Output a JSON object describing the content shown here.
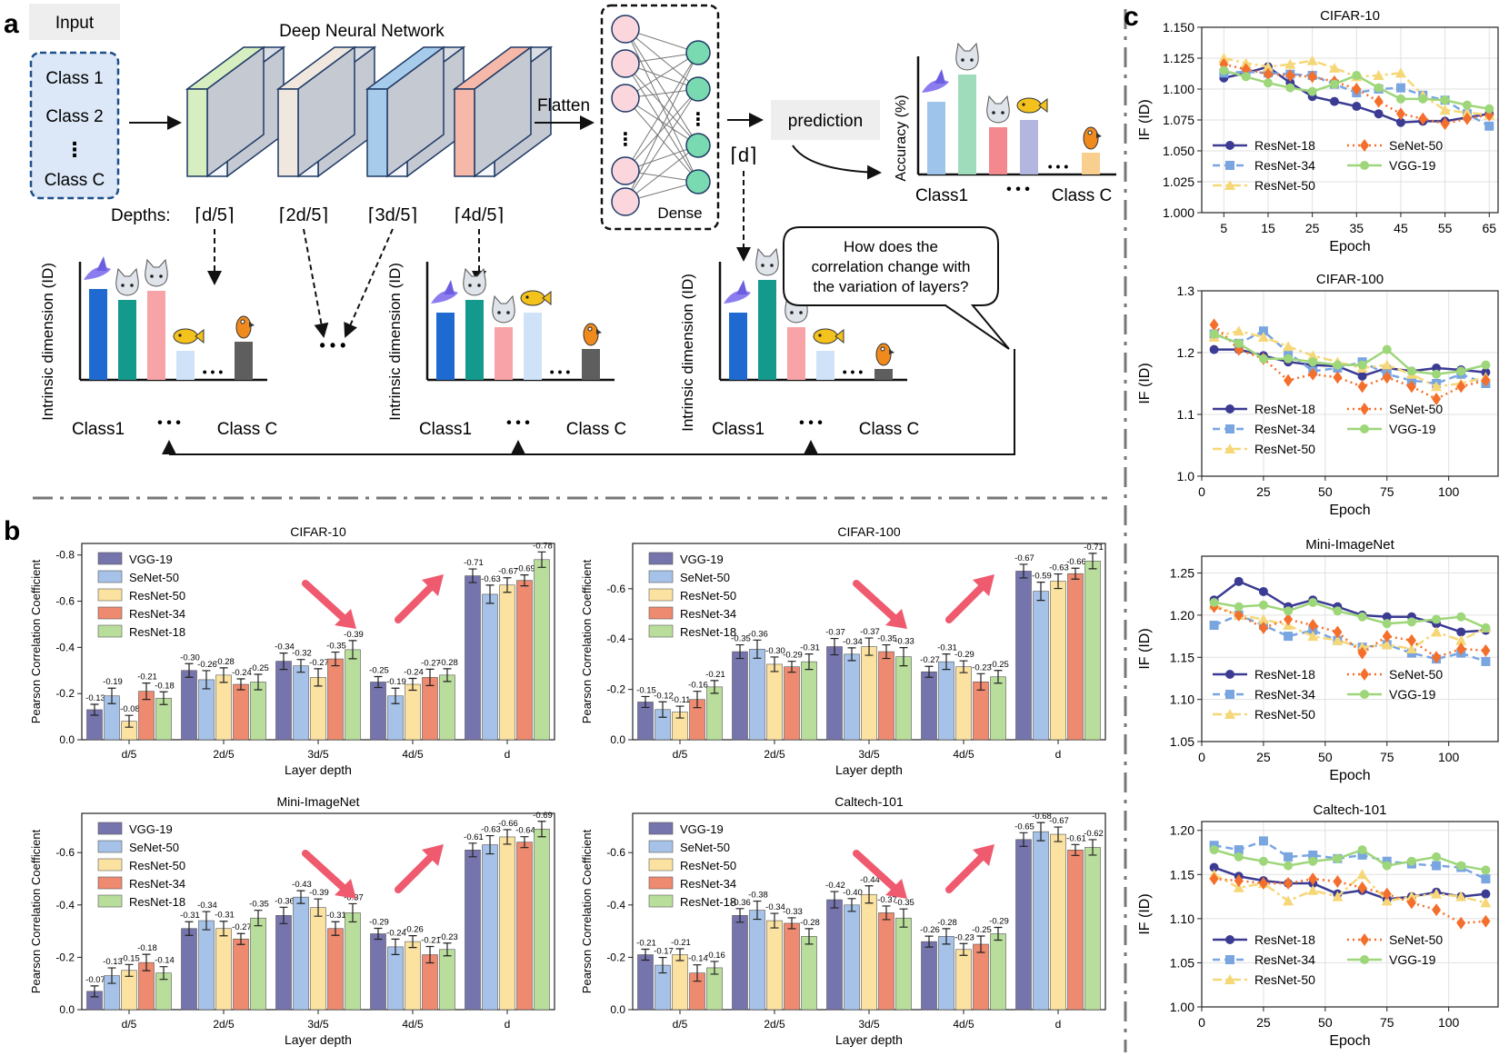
{
  "panel_labels": {
    "a": "a",
    "b": "b",
    "c": "c"
  },
  "colors": {
    "vgg19_bar": "#7674ad",
    "senet50_bar": "#a6c2e8",
    "resnet50_bar": "#fbe2a0",
    "resnet34_bar": "#ee8a6f",
    "resnet18_bar": "#b9de9c",
    "resnet18_line": "#3b3b93",
    "resnet34_line": "#79a5e0",
    "resnet50_line": "#f6d778",
    "senet50_line": "#f46f2c",
    "vgg19_line": "#9ed67a",
    "arrow": "#ef5a6f",
    "input_box": "#dce8f8",
    "input_border": "#1f4f8b"
  },
  "schematic": {
    "input_label": "Input",
    "classes": [
      "Class 1",
      "Class 2",
      "⋮",
      "Class C"
    ],
    "network_title": "Deep Neural Network",
    "depths_label": "Depths:",
    "depth_marks": [
      "⌈d/5⌉",
      "⌈2d/5⌉",
      "⌈3d/5⌉",
      "⌈4d/5⌉"
    ],
    "flatten_label": "Flatten",
    "dense_label": "Dense",
    "final_depth": "⌈d⌉",
    "prediction_label": "prediction",
    "accuracy_label": "Accuracy (%)",
    "id_label": "Intrinsic dimension (ID)",
    "class_first": "Class1",
    "class_last": "Class C",
    "ellipsis": "• • •",
    "question": [
      "How does the",
      "correlation change with",
      "the variation of layers?"
    ]
  },
  "chart_data": [
    {
      "type": "bar",
      "panel": "b",
      "title": "CIFAR-10",
      "categories": [
        "d/5",
        "2d/5",
        "3d/5",
        "4d/5",
        "d"
      ],
      "xlabel": "Layer depth",
      "ylabel": "Pearson Correlation Coefficient",
      "ylim": [
        0,
        -0.85
      ],
      "yticks": [
        "0.0",
        "-0.2",
        "-0.4",
        "-0.6",
        "-0.8"
      ],
      "legend_position": "top-left",
      "series": [
        {
          "name": "VGG-19",
          "values": [
            -0.13,
            -0.3,
            -0.34,
            -0.25,
            -0.71
          ],
          "labels": [
            "-0.13",
            "-0.30",
            "-0.34",
            "-0.25",
            "-0.71"
          ]
        },
        {
          "name": "SeNet-50",
          "values": [
            -0.19,
            -0.26,
            -0.32,
            -0.19,
            -0.63
          ],
          "labels": [
            "-0.19",
            "-0.26",
            "-0.32",
            "-0.19",
            "-0.63"
          ]
        },
        {
          "name": "ResNet-50",
          "values": [
            -0.08,
            -0.28,
            -0.27,
            -0.24,
            -0.67
          ],
          "labels": [
            "-0.08",
            "-0.28",
            "-0.27",
            "-0.24",
            "-0.67"
          ]
        },
        {
          "name": "ResNet-34",
          "values": [
            -0.21,
            -0.24,
            -0.35,
            -0.27,
            -0.69
          ],
          "labels": [
            "-0.21",
            "-0.24",
            "-0.35",
            "-0.27",
            "-0.69"
          ]
        },
        {
          "name": "ResNet-18",
          "values": [
            -0.18,
            -0.25,
            -0.39,
            -0.28,
            -0.78
          ],
          "labels": [
            "-0.18",
            "-0.25",
            "-0.39",
            "-0.28",
            "-0.78"
          ]
        }
      ]
    },
    {
      "type": "bar",
      "panel": "b",
      "title": "CIFAR-100",
      "categories": [
        "d/5",
        "2d/5",
        "3d/5",
        "4d/5",
        "d"
      ],
      "xlabel": "Layer depth",
      "ylabel": "Pearson Correlation Coefficient",
      "ylim": [
        0,
        -0.78
      ],
      "yticks": [
        "0.0",
        "-0.2",
        "-0.4",
        "-0.6"
      ],
      "legend_position": "top-left",
      "series": [
        {
          "name": "VGG-19",
          "values": [
            -0.15,
            -0.35,
            -0.37,
            -0.27,
            -0.67
          ],
          "labels": [
            "-0.15",
            "-0.35",
            "-0.37",
            "-0.27",
            "-0.67"
          ]
        },
        {
          "name": "SeNet-50",
          "values": [
            -0.12,
            -0.36,
            -0.34,
            -0.31,
            -0.59
          ],
          "labels": [
            "-0.12",
            "-0.36",
            "-0.34",
            "-0.31",
            "-0.59"
          ]
        },
        {
          "name": "ResNet-50",
          "values": [
            -0.11,
            -0.3,
            -0.37,
            -0.29,
            -0.63
          ],
          "labels": [
            "-0.11",
            "-0.30",
            "-0.37",
            "-0.29",
            "-0.63"
          ]
        },
        {
          "name": "ResNet-34",
          "values": [
            -0.16,
            -0.29,
            -0.35,
            -0.23,
            -0.66
          ],
          "labels": [
            "-0.16",
            "-0.29",
            "-0.35",
            "-0.23",
            "-0.66"
          ]
        },
        {
          "name": "ResNet-18",
          "values": [
            -0.21,
            -0.31,
            -0.33,
            -0.25,
            -0.71
          ],
          "labels": [
            "-0.21",
            "-0.31",
            "-0.33",
            "-0.25",
            "-0.71"
          ]
        }
      ]
    },
    {
      "type": "bar",
      "panel": "b",
      "title": "Mini-ImageNet",
      "categories": [
        "d/5",
        "2d/5",
        "3d/5",
        "4d/5",
        "d"
      ],
      "xlabel": "Layer depth",
      "ylabel": "Pearson Correlation Coefficient",
      "ylim": [
        0,
        -0.75
      ],
      "yticks": [
        "0.0",
        "-0.2",
        "-0.4",
        "-0.6"
      ],
      "legend_position": "top-left",
      "series": [
        {
          "name": "VGG-19",
          "values": [
            -0.07,
            -0.31,
            -0.36,
            -0.29,
            -0.61
          ],
          "labels": [
            "-0.07",
            "-0.31",
            "-0.36",
            "-0.29",
            "-0.61"
          ]
        },
        {
          "name": "SeNet-50",
          "values": [
            -0.13,
            -0.34,
            -0.43,
            -0.24,
            -0.63
          ],
          "labels": [
            "-0.13",
            "-0.34",
            "-0.43",
            "-0.24",
            "-0.63"
          ]
        },
        {
          "name": "ResNet-50",
          "values": [
            -0.15,
            -0.31,
            -0.39,
            -0.26,
            -0.66
          ],
          "labels": [
            "-0.15",
            "-0.31",
            "-0.39",
            "-0.26",
            "-0.66"
          ]
        },
        {
          "name": "ResNet-34",
          "values": [
            -0.18,
            -0.27,
            -0.31,
            -0.21,
            -0.64
          ],
          "labels": [
            "-0.18",
            "-0.27",
            "-0.31",
            "-0.21",
            "-0.64"
          ]
        },
        {
          "name": "ResNet-18",
          "values": [
            -0.14,
            -0.35,
            -0.37,
            -0.23,
            -0.69
          ],
          "labels": [
            "-0.14",
            "-0.35",
            "-0.37",
            "-0.23",
            "-0.69"
          ]
        }
      ]
    },
    {
      "type": "bar",
      "panel": "b",
      "title": "Caltech-101",
      "categories": [
        "d/5",
        "2d/5",
        "3d/5",
        "4d/5",
        "d"
      ],
      "xlabel": "Layer depth",
      "ylabel": "Pearson Correlation Coefficient",
      "ylim": [
        0,
        -0.75
      ],
      "yticks": [
        "0.0",
        "-0.2",
        "-0.4",
        "-0.6"
      ],
      "legend_position": "top-left",
      "series": [
        {
          "name": "VGG-19",
          "values": [
            -0.21,
            -0.36,
            -0.42,
            -0.26,
            -0.65
          ],
          "labels": [
            "-0.21",
            "-0.36",
            "-0.42",
            "-0.26",
            "-0.65"
          ]
        },
        {
          "name": "SeNet-50",
          "values": [
            -0.17,
            -0.38,
            -0.4,
            -0.28,
            -0.68
          ],
          "labels": [
            "-0.17",
            "-0.38",
            "-0.40",
            "-0.28",
            "-0.68"
          ]
        },
        {
          "name": "ResNet-50",
          "values": [
            -0.21,
            -0.34,
            -0.44,
            -0.23,
            -0.67
          ],
          "labels": [
            "-0.21",
            "-0.34",
            "-0.44",
            "-0.23",
            "-0.67"
          ]
        },
        {
          "name": "ResNet-34",
          "values": [
            -0.14,
            -0.33,
            -0.37,
            -0.25,
            -0.61
          ],
          "labels": [
            "-0.14",
            "-0.33",
            "-0.37",
            "-0.25",
            "-0.61"
          ]
        },
        {
          "name": "ResNet-18",
          "values": [
            -0.16,
            -0.28,
            -0.35,
            -0.29,
            -0.62
          ],
          "labels": [
            "-0.16",
            "-0.28",
            "-0.35",
            "-0.29",
            "-0.62"
          ]
        }
      ]
    },
    {
      "type": "line",
      "panel": "c",
      "title": "CIFAR-10",
      "x": [
        5,
        10,
        15,
        20,
        25,
        30,
        35,
        40,
        45,
        50,
        55,
        60,
        65
      ],
      "xticks": [
        5,
        15,
        25,
        35,
        45,
        55,
        65
      ],
      "xlim": [
        0,
        67
      ],
      "ylim": [
        1.0,
        1.15
      ],
      "yticks": [
        "1.000",
        "1.025",
        "1.050",
        "1.075",
        "1.100",
        "1.125",
        "1.150"
      ],
      "ytick_values": [
        1.0,
        1.025,
        1.05,
        1.075,
        1.1,
        1.125,
        1.15
      ],
      "xlabel": "Epoch",
      "ylabel": "IF (ID)",
      "legend_position": "bottom-left",
      "series": [
        {
          "name": "ResNet-18",
          "values": [
            1.109,
            1.113,
            1.118,
            1.105,
            1.094,
            1.09,
            1.086,
            1.08,
            1.073,
            1.074,
            1.074,
            1.077,
            1.08
          ]
        },
        {
          "name": "ResNet-34",
          "values": [
            1.113,
            1.114,
            1.113,
            1.112,
            1.111,
            1.104,
            1.097,
            1.1,
            1.101,
            1.095,
            1.091,
            1.08,
            1.07
          ]
        },
        {
          "name": "ResNet-50",
          "values": [
            1.125,
            1.121,
            1.118,
            1.12,
            1.123,
            1.117,
            1.11,
            1.111,
            1.113,
            1.095,
            1.083,
            1.081,
            1.079
          ]
        },
        {
          "name": "SeNet-50",
          "values": [
            1.12,
            1.116,
            1.112,
            1.111,
            1.11,
            1.106,
            1.1,
            1.09,
            1.08,
            1.076,
            1.072,
            1.076,
            1.079
          ]
        },
        {
          "name": "VGG-19",
          "values": [
            1.115,
            1.11,
            1.105,
            1.101,
            1.098,
            1.104,
            1.111,
            1.101,
            1.092,
            1.092,
            1.091,
            1.087,
            1.084
          ]
        }
      ]
    },
    {
      "type": "line",
      "panel": "c",
      "title": "CIFAR-100",
      "x": [
        5,
        15,
        25,
        35,
        45,
        55,
        65,
        75,
        85,
        95,
        105,
        115
      ],
      "xticks": [
        0,
        25,
        50,
        75,
        100
      ],
      "xlim": [
        0,
        120
      ],
      "ylim": [
        1.0,
        1.3
      ],
      "yticks": [
        "1.0",
        "1.1",
        "1.2",
        "1.3"
      ],
      "ytick_values": [
        1.0,
        1.1,
        1.2,
        1.3
      ],
      "xlabel": "Epoch",
      "ylabel": "IF (ID)",
      "legend_position": "bottom-left",
      "series": [
        {
          "name": "ResNet-18",
          "values": [
            1.205,
            1.205,
            1.195,
            1.185,
            1.18,
            1.178,
            1.162,
            1.175,
            1.17,
            1.175,
            1.172,
            1.168
          ]
        },
        {
          "name": "ResNet-34",
          "values": [
            1.23,
            1.215,
            1.235,
            1.2,
            1.17,
            1.175,
            1.185,
            1.165,
            1.155,
            1.15,
            1.165,
            1.15
          ]
        },
        {
          "name": "ResNet-50",
          "values": [
            1.225,
            1.235,
            1.225,
            1.21,
            1.195,
            1.185,
            1.175,
            1.18,
            1.165,
            1.145,
            1.15,
            1.16
          ]
        },
        {
          "name": "SeNet-50",
          "values": [
            1.245,
            1.205,
            1.19,
            1.155,
            1.165,
            1.16,
            1.145,
            1.16,
            1.145,
            1.125,
            1.145,
            1.155
          ]
        },
        {
          "name": "VGG-19",
          "values": [
            1.23,
            1.215,
            1.19,
            1.19,
            1.185,
            1.18,
            1.18,
            1.205,
            1.17,
            1.165,
            1.17,
            1.18
          ]
        }
      ]
    },
    {
      "type": "line",
      "panel": "c",
      "title": "Mini-ImageNet",
      "x": [
        5,
        15,
        25,
        35,
        45,
        55,
        65,
        75,
        85,
        95,
        105,
        115
      ],
      "xticks": [
        0,
        25,
        50,
        75,
        100
      ],
      "xlim": [
        0,
        120
      ],
      "ylim": [
        1.05,
        1.27
      ],
      "yticks": [
        "1.05",
        "1.10",
        "1.15",
        "1.20",
        "1.25"
      ],
      "ytick_values": [
        1.05,
        1.1,
        1.15,
        1.2,
        1.25
      ],
      "xlabel": "Epoch",
      "ylabel": "IF (ID)",
      "legend_position": "bottom-left",
      "series": [
        {
          "name": "ResNet-18",
          "values": [
            1.218,
            1.24,
            1.228,
            1.21,
            1.218,
            1.21,
            1.2,
            1.198,
            1.198,
            1.19,
            1.18,
            1.182
          ]
        },
        {
          "name": "ResNet-34",
          "values": [
            1.188,
            1.2,
            1.188,
            1.175,
            1.182,
            1.17,
            1.162,
            1.165,
            1.155,
            1.148,
            1.155,
            1.145
          ]
        },
        {
          "name": "ResNet-50",
          "values": [
            1.212,
            1.2,
            1.195,
            1.188,
            1.175,
            1.17,
            1.162,
            1.165,
            1.16,
            1.18,
            1.17,
            1.185
          ]
        },
        {
          "name": "SeNet-50",
          "values": [
            1.21,
            1.2,
            1.185,
            1.195,
            1.188,
            1.18,
            1.155,
            1.175,
            1.17,
            1.15,
            1.16,
            1.158
          ]
        },
        {
          "name": "VGG-19",
          "values": [
            1.215,
            1.21,
            1.212,
            1.205,
            1.215,
            1.205,
            1.198,
            1.19,
            1.192,
            1.195,
            1.198,
            1.185
          ]
        }
      ]
    },
    {
      "type": "line",
      "panel": "c",
      "title": "Caltech-101",
      "x": [
        5,
        15,
        25,
        35,
        45,
        55,
        65,
        75,
        85,
        95,
        105,
        115
      ],
      "xticks": [
        0,
        25,
        50,
        75,
        100
      ],
      "xlim": [
        0,
        120
      ],
      "ylim": [
        1.0,
        1.21
      ],
      "yticks": [
        "1.00",
        "1.05",
        "1.10",
        "1.15",
        "1.20"
      ],
      "ytick_values": [
        1.0,
        1.05,
        1.1,
        1.15,
        1.2
      ],
      "xlabel": "Epoch",
      "ylabel": "IF (ID)",
      "legend_position": "bottom-left",
      "series": [
        {
          "name": "ResNet-18",
          "values": [
            1.158,
            1.148,
            1.143,
            1.14,
            1.14,
            1.128,
            1.132,
            1.122,
            1.125,
            1.13,
            1.125,
            1.128
          ]
        },
        {
          "name": "ResNet-34",
          "values": [
            1.183,
            1.178,
            1.188,
            1.17,
            1.172,
            1.168,
            1.172,
            1.165,
            1.162,
            1.16,
            1.158,
            1.145
          ]
        },
        {
          "name": "ResNet-50",
          "values": [
            1.15,
            1.135,
            1.14,
            1.12,
            1.132,
            1.125,
            1.15,
            1.12,
            1.125,
            1.128,
            1.125,
            1.118
          ]
        },
        {
          "name": "SeNet-50",
          "values": [
            1.145,
            1.143,
            1.14,
            1.14,
            1.145,
            1.142,
            1.135,
            1.128,
            1.118,
            1.11,
            1.095,
            1.097
          ]
        },
        {
          "name": "VGG-19",
          "values": [
            1.178,
            1.17,
            1.165,
            1.16,
            1.165,
            1.168,
            1.178,
            1.16,
            1.165,
            1.17,
            1.16,
            1.155
          ]
        }
      ]
    }
  ]
}
